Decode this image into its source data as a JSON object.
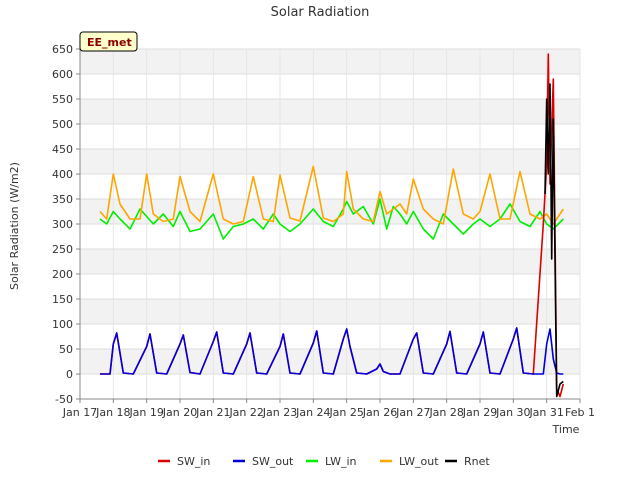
{
  "chart_data": {
    "type": "line",
    "title": "Solar Radiation",
    "xlabel": "Time",
    "ylabel": "Solar Radiation (W/m2)",
    "badge": "EE_met",
    "ylim": [
      -50,
      650
    ],
    "yticks": [
      -50,
      0,
      50,
      100,
      150,
      200,
      250,
      300,
      350,
      400,
      450,
      500,
      550,
      600,
      650
    ],
    "xlim": [
      17,
      32
    ],
    "xticks": [
      {
        "value": 17,
        "label": "Jan 17"
      },
      {
        "value": 18,
        "label": "Jan 18"
      },
      {
        "value": 19,
        "label": "Jan 19"
      },
      {
        "value": 20,
        "label": "Jan 20"
      },
      {
        "value": 21,
        "label": "Jan 21"
      },
      {
        "value": 22,
        "label": "Jan 22"
      },
      {
        "value": 23,
        "label": "Jan 23"
      },
      {
        "value": 24,
        "label": "Jan 24"
      },
      {
        "value": 25,
        "label": "Jan 25"
      },
      {
        "value": 26,
        "label": "Jan 26"
      },
      {
        "value": 27,
        "label": "Jan 27"
      },
      {
        "value": 28,
        "label": "Jan 28"
      },
      {
        "value": 29,
        "label": "Jan 29"
      },
      {
        "value": 30,
        "label": "Jan 30"
      },
      {
        "value": 31,
        "label": "Jan 31"
      },
      {
        "value": 32,
        "label": "Feb 1"
      }
    ],
    "legend_position": "bottom",
    "series": [
      {
        "name": "SW_in",
        "color": "#dd0000",
        "x": [
          17.6,
          17.9,
          18.0,
          18.1,
          18.3,
          18.6,
          19.0,
          19.1,
          19.3,
          19.6,
          20.0,
          20.1,
          20.3,
          20.6,
          21.0,
          21.1,
          21.3,
          21.6,
          22.0,
          22.1,
          22.3,
          22.6,
          23.0,
          23.1,
          23.3,
          23.6,
          24.0,
          24.1,
          24.3,
          24.6,
          24.9,
          25.0,
          25.1,
          25.3,
          25.6,
          25.9,
          26.0,
          26.1,
          26.3,
          26.6,
          27.0,
          27.1,
          27.3,
          27.6,
          28.0,
          28.1,
          28.3,
          28.6,
          29.0,
          29.1,
          29.3,
          29.6,
          30.0,
          30.1,
          30.3,
          30.6,
          30.9,
          31.0,
          31.05,
          31.1,
          31.2,
          31.3,
          31.4,
          31.5
        ],
        "y": [
          0,
          0,
          60,
          82,
          2,
          0,
          55,
          80,
          2,
          0,
          60,
          78,
          3,
          0,
          65,
          84,
          2,
          0,
          60,
          82,
          2,
          0,
          55,
          80,
          2,
          0,
          62,
          86,
          2,
          0,
          70,
          90,
          55,
          2,
          0,
          10,
          20,
          5,
          0,
          0,
          70,
          82,
          2,
          0,
          60,
          85,
          2,
          0,
          60,
          84,
          2,
          0,
          70,
          92,
          2,
          0,
          300,
          420,
          640,
          380,
          590,
          -30,
          -45,
          -20
        ]
      },
      {
        "name": "SW_out",
        "color": "#0000dd",
        "x": [
          17.6,
          17.9,
          18.0,
          18.1,
          18.3,
          18.6,
          19.0,
          19.1,
          19.3,
          19.6,
          20.0,
          20.1,
          20.3,
          20.6,
          21.0,
          21.1,
          21.3,
          21.6,
          22.0,
          22.1,
          22.3,
          22.6,
          23.0,
          23.1,
          23.3,
          23.6,
          24.0,
          24.1,
          24.3,
          24.6,
          24.9,
          25.0,
          25.1,
          25.3,
          25.6,
          25.9,
          26.0,
          26.1,
          26.3,
          26.6,
          27.0,
          27.1,
          27.3,
          27.6,
          28.0,
          28.1,
          28.3,
          28.6,
          29.0,
          29.1,
          29.3,
          29.6,
          30.0,
          30.1,
          30.3,
          30.6,
          30.9,
          31.0,
          31.1,
          31.2,
          31.3,
          31.4,
          31.5
        ],
        "y": [
          0,
          0,
          60,
          82,
          2,
          0,
          55,
          80,
          2,
          0,
          60,
          78,
          3,
          0,
          65,
          84,
          2,
          0,
          60,
          82,
          2,
          0,
          55,
          80,
          2,
          0,
          62,
          86,
          2,
          0,
          70,
          90,
          55,
          2,
          0,
          10,
          20,
          5,
          0,
          0,
          70,
          82,
          2,
          0,
          60,
          85,
          2,
          0,
          60,
          84,
          2,
          0,
          70,
          92,
          2,
          0,
          0,
          60,
          90,
          30,
          2,
          0,
          0
        ]
      },
      {
        "name": "LW_in",
        "color": "#00ee00",
        "x": [
          17.6,
          17.8,
          18.0,
          18.2,
          18.5,
          18.8,
          19.0,
          19.2,
          19.5,
          19.8,
          20.0,
          20.3,
          20.6,
          21.0,
          21.3,
          21.6,
          21.9,
          22.2,
          22.5,
          22.8,
          23.0,
          23.3,
          23.6,
          24.0,
          24.3,
          24.6,
          24.9,
          25.0,
          25.2,
          25.5,
          25.8,
          26.0,
          26.2,
          26.4,
          26.6,
          26.8,
          27.0,
          27.3,
          27.6,
          27.9,
          28.2,
          28.5,
          28.8,
          29.0,
          29.3,
          29.6,
          29.9,
          30.2,
          30.5,
          30.8,
          31.0,
          31.2,
          31.5
        ],
        "y": [
          310,
          300,
          325,
          310,
          290,
          330,
          315,
          300,
          320,
          295,
          325,
          285,
          290,
          320,
          270,
          295,
          300,
          310,
          290,
          320,
          300,
          285,
          300,
          330,
          305,
          295,
          330,
          345,
          320,
          335,
          300,
          350,
          290,
          335,
          320,
          300,
          325,
          290,
          270,
          320,
          300,
          280,
          300,
          310,
          295,
          310,
          340,
          305,
          295,
          325,
          300,
          290,
          310
        ]
      },
      {
        "name": "LW_out",
        "color": "#ffa500",
        "x": [
          17.6,
          17.8,
          18.0,
          18.2,
          18.5,
          18.8,
          19.0,
          19.2,
          19.5,
          19.8,
          20.0,
          20.3,
          20.6,
          21.0,
          21.3,
          21.6,
          21.9,
          22.2,
          22.5,
          22.8,
          23.0,
          23.3,
          23.6,
          24.0,
          24.3,
          24.6,
          24.9,
          25.0,
          25.2,
          25.5,
          25.8,
          26.0,
          26.2,
          26.4,
          26.6,
          26.8,
          27.0,
          27.3,
          27.6,
          27.9,
          28.2,
          28.5,
          28.8,
          29.0,
          29.3,
          29.6,
          29.9,
          30.2,
          30.5,
          30.8,
          31.0,
          31.2,
          31.5
        ],
        "y": [
          325,
          310,
          400,
          340,
          310,
          310,
          400,
          320,
          305,
          310,
          395,
          325,
          305,
          400,
          310,
          300,
          305,
          395,
          310,
          305,
          398,
          312,
          306,
          415,
          312,
          305,
          320,
          405,
          330,
          310,
          305,
          365,
          320,
          330,
          340,
          320,
          390,
          330,
          310,
          300,
          410,
          320,
          310,
          325,
          400,
          310,
          310,
          405,
          320,
          310,
          320,
          300,
          330
        ]
      },
      {
        "name": "Rnet",
        "color": "#000000",
        "x": [
          30.95,
          31.0,
          31.05,
          31.1,
          31.15,
          31.2,
          31.3,
          31.4,
          31.5
        ],
        "y": [
          360,
          550,
          400,
          580,
          230,
          510,
          -45,
          -20,
          -15
        ]
      }
    ]
  }
}
